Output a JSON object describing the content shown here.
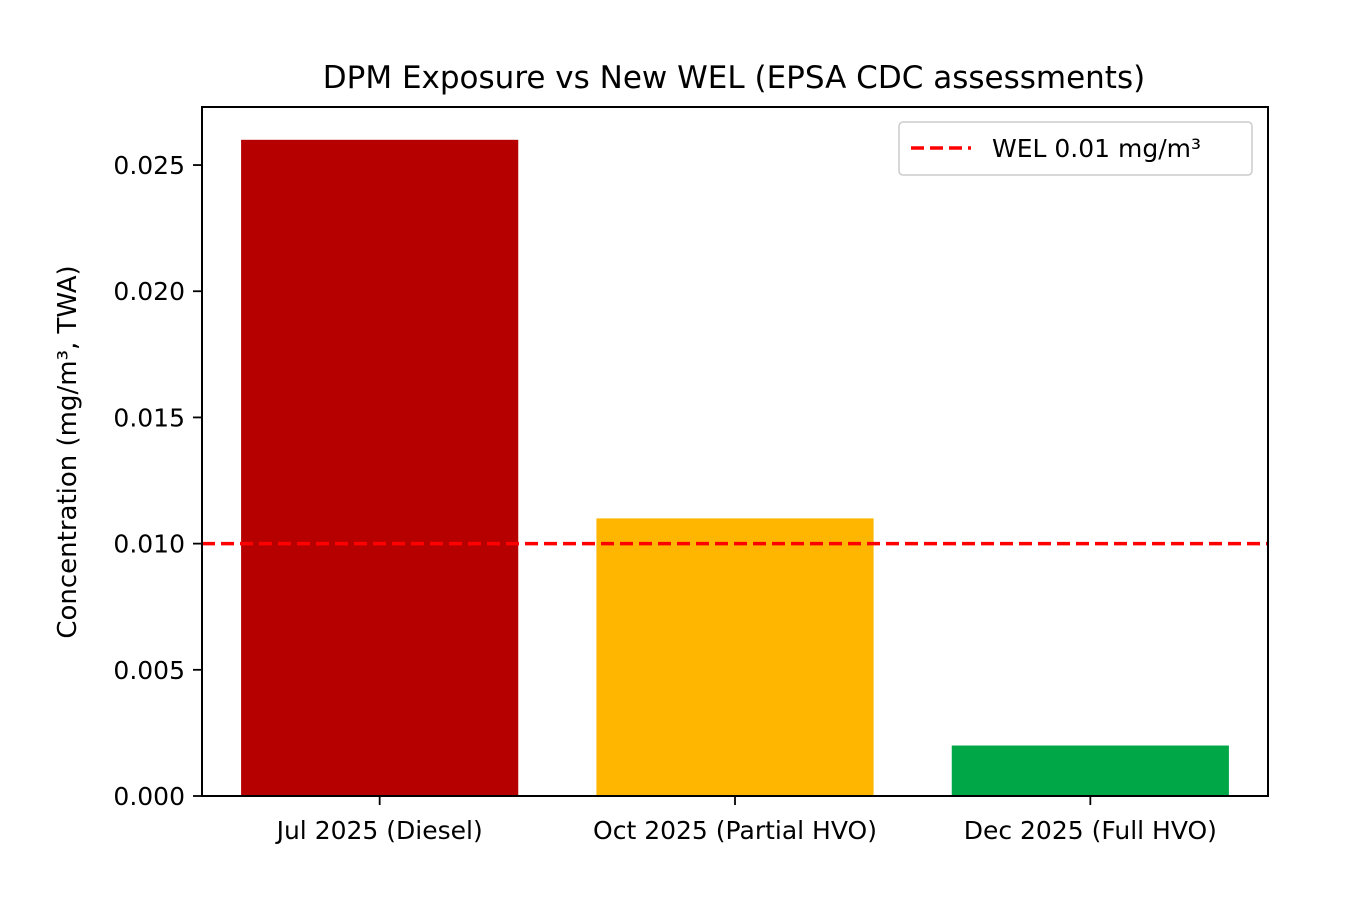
{
  "chart_data": {
    "type": "bar",
    "title": "DPM Exposure vs New WEL (EPSA CDC assessments)",
    "xlabel": "",
    "ylabel": "Concentration (mg/m³, TWA)",
    "categories": [
      "Jul 2025 (Diesel)",
      "Oct 2025 (Partial HVO)",
      "Dec 2025 (Full HVO)"
    ],
    "values": [
      0.026,
      0.011,
      0.002
    ],
    "bar_colors": [
      "#b60000",
      "#ffb600",
      "#00a746"
    ],
    "ylim": [
      0,
      0.0273
    ],
    "yticks": [
      0,
      0.005,
      0.01,
      0.015,
      0.02,
      0.025
    ],
    "ytick_labels": [
      "0.000",
      "0.005",
      "0.010",
      "0.015",
      "0.020",
      "0.025"
    ],
    "reference_line": {
      "value": 0.01,
      "label": "WEL 0.01 mg/m³",
      "color": "#ff0000",
      "style": "dashed"
    },
    "legend_placement": "top-right",
    "grid": false
  }
}
